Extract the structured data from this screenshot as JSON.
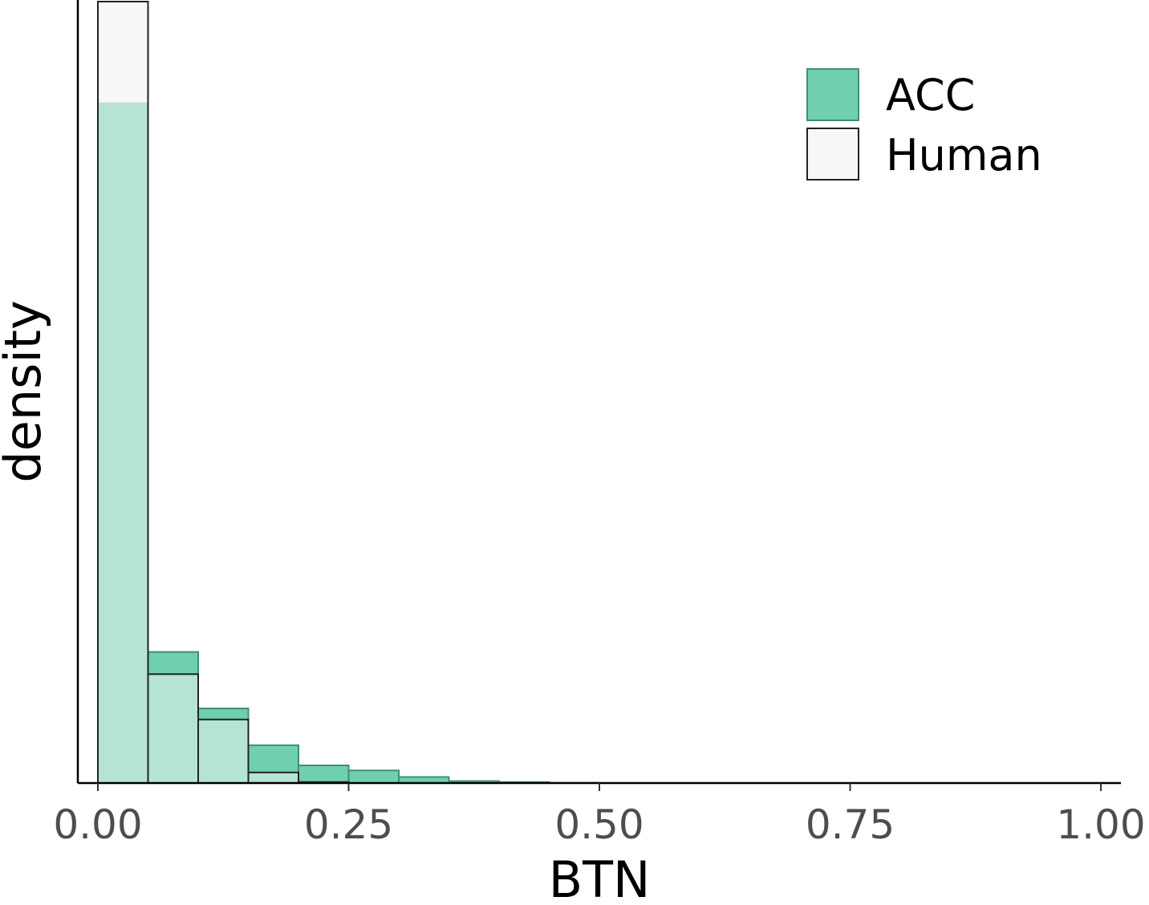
{
  "chart_data": {
    "type": "bar",
    "subtype": "overlaid-histogram",
    "title": "",
    "xlabel": "BTN",
    "ylabel": "density",
    "xlim": [
      0,
      1
    ],
    "ylim": [
      0,
      15.5
    ],
    "y_ticks_shown": false,
    "grid": false,
    "legend_position": "top-right",
    "x_ticks": [
      "0.00",
      "0.25",
      "0.50",
      "0.75",
      "1.00"
    ],
    "x_tick_values": [
      0,
      0.25,
      0.5,
      0.75,
      1.0
    ],
    "bin_width": 0.05,
    "bin_starts": [
      0,
      0.05,
      0.1,
      0.15,
      0.2,
      0.25,
      0.3,
      0.35,
      0.4,
      0.45
    ],
    "series": [
      {
        "name": "ACC",
        "color": "#6fcfb0",
        "edge": "#3f8f76",
        "values": [
          13.5,
          2.6,
          1.48,
          0.75,
          0.35,
          0.25,
          0.12,
          0.04,
          0.02,
          0.005
        ]
      },
      {
        "name": "Human",
        "color": "#f7f7f7",
        "edge": "#222222",
        "values": [
          15.5,
          2.16,
          1.26,
          0.21,
          0.02,
          0.0,
          0.0,
          0.0,
          0.0,
          0.0
        ]
      }
    ],
    "overlap_color": "#b5e4d4"
  }
}
